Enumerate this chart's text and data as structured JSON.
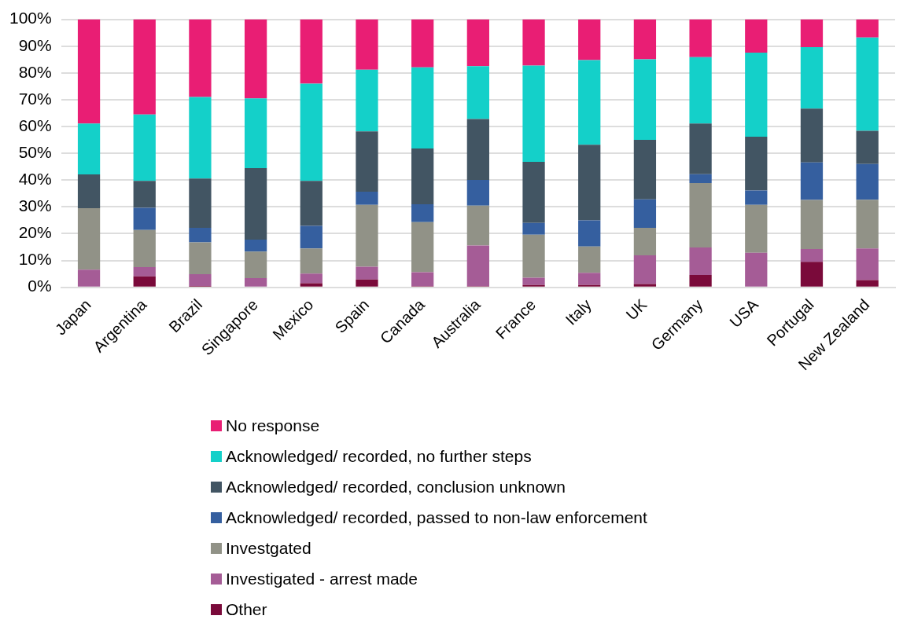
{
  "chart_data": {
    "type": "bar",
    "stacked": true,
    "categories": [
      "Japan",
      "Argentina",
      "Brazil",
      "Singapore",
      "Mexico",
      "Spain",
      "Canada",
      "Australia",
      "France",
      "Italy",
      "UK",
      "Germany",
      "USA",
      "Portugal",
      "New Zealand"
    ],
    "series": [
      {
        "name": "Other",
        "color": "#7a0a3a",
        "values": [
          0,
          4.1,
          0.5,
          0,
          1.5,
          2.9,
          0.4,
          0.4,
          0.9,
          0.9,
          1.2,
          4.6,
          0,
          9.5,
          2.7
        ]
      },
      {
        "name": "Investigated - arrest made",
        "color": "#a55c96",
        "values": [
          6.6,
          3.4,
          4.4,
          3.4,
          3.6,
          4.8,
          5.2,
          15.2,
          2.7,
          4.5,
          10.7,
          10.3,
          12.9,
          4.8,
          11.8
        ]
      },
      {
        "name": "Investgated",
        "color": "#919287",
        "values": [
          22.9,
          13.9,
          11.9,
          9.9,
          9.4,
          23.1,
          18.7,
          14.9,
          16.0,
          9.8,
          10.3,
          24.0,
          17.9,
          18.3,
          18.2
        ]
      },
      {
        "name": "Acknowledged/ recorded, passed to non-law enforcement",
        "color": "#355f9f",
        "values": [
          0,
          8.3,
          5.4,
          4.5,
          8.4,
          4.9,
          6.7,
          9.6,
          4.4,
          9.8,
          10.6,
          3.3,
          5.3,
          14.0,
          13.3
        ]
      },
      {
        "name": "Acknowledged/ recorded, conclusion unknown",
        "color": "#425563",
        "values": [
          12.6,
          10.0,
          18.4,
          26.7,
          16.8,
          22.5,
          20.8,
          22.7,
          22.8,
          28.2,
          22.2,
          18.9,
          20.1,
          20.1,
          12.4
        ]
      },
      {
        "name": "Acknowledged/ recorded, no further steps",
        "color": "#14d0c9",
        "values": [
          19.0,
          24.8,
          30.4,
          26.0,
          36.3,
          23.0,
          30.3,
          19.7,
          35.9,
          31.6,
          30.1,
          24.8,
          31.4,
          22.9,
          34.8
        ]
      },
      {
        "name": "No response",
        "color": "#e91e74",
        "values": [
          38.9,
          35.5,
          29.0,
          29.5,
          24.0,
          18.8,
          17.9,
          17.5,
          17.3,
          15.2,
          14.9,
          14.1,
          12.4,
          10.4,
          6.8
        ]
      }
    ],
    "ylim": [
      0,
      100
    ],
    "yticks": [
      {
        "value": 0,
        "label": "0%"
      },
      {
        "value": 10,
        "label": "10%"
      },
      {
        "value": 20,
        "label": "20%"
      },
      {
        "value": 30,
        "label": "30%"
      },
      {
        "value": 40,
        "label": "40%"
      },
      {
        "value": 50,
        "label": "50%"
      },
      {
        "value": 60,
        "label": "60%"
      },
      {
        "value": 70,
        "label": "70%"
      },
      {
        "value": 80,
        "label": "80%"
      },
      {
        "value": 90,
        "label": "90%"
      },
      {
        "value": 100,
        "label": "100%"
      }
    ],
    "grid": "y",
    "legend": "bottom"
  }
}
